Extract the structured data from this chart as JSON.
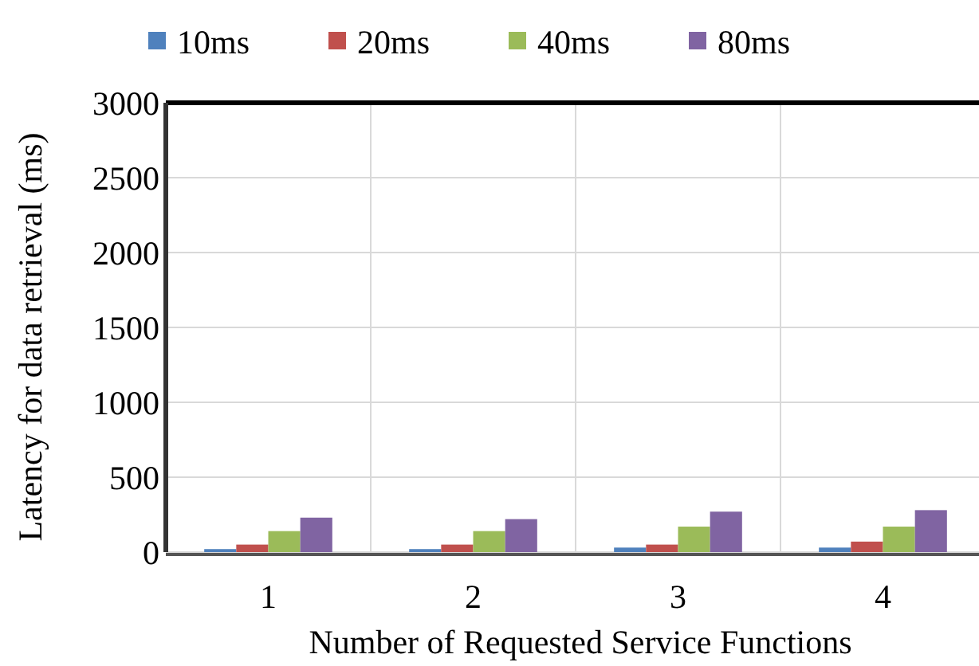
{
  "chart_data": {
    "type": "bar",
    "xlabel": "Number of Requested Service Functions",
    "ylabel": "Latency for data retrieval (ms)",
    "categories": [
      "1",
      "2",
      "3",
      "4"
    ],
    "series": [
      {
        "name": "10ms",
        "color": "#4f81bd",
        "values": [
          20,
          20,
          30,
          30
        ]
      },
      {
        "name": "20ms",
        "color": "#c0504d",
        "values": [
          50,
          50,
          50,
          70
        ]
      },
      {
        "name": "40ms",
        "color": "#9bbb59",
        "values": [
          140,
          140,
          170,
          170
        ]
      },
      {
        "name": "80ms",
        "color": "#8064a2",
        "values": [
          230,
          220,
          270,
          280
        ]
      }
    ],
    "ylim": [
      0,
      3000
    ],
    "yticks": [
      0,
      500,
      1000,
      1500,
      2000,
      2500,
      3000
    ],
    "grid": true,
    "legend": "top"
  }
}
